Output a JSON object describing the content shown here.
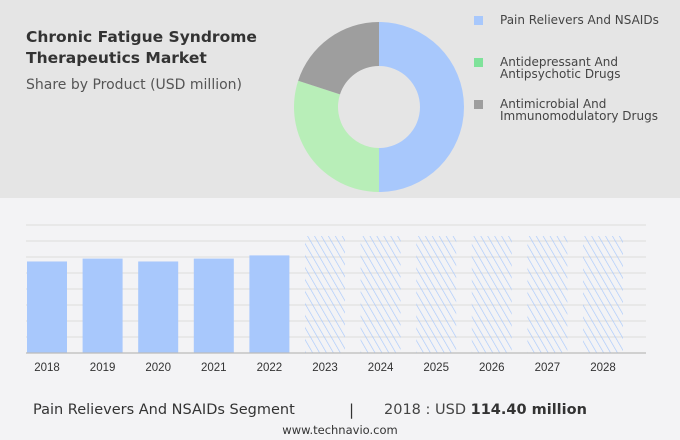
{
  "chart_data": [
    {
      "type": "pie",
      "variant": "donut",
      "title": "Chronic Fatigue Syndrome Therapeutics Market",
      "subtitle": "Share by Product (USD million)",
      "legend_position": "right",
      "slices": [
        {
          "name": "Pain Relievers And NSAIDs",
          "value": 50,
          "color": "#a8c8fc"
        },
        {
          "name": "Antidepressant And Antipsychotic Drugs",
          "value": 30,
          "color": "#b8eeb8"
        },
        {
          "name": "Antimicrobial And Immunomodulatory Drugs",
          "value": 20,
          "color": "#9e9e9e"
        }
      ],
      "legend_colors": [
        "#a8c8fc",
        "#7fe29a",
        "#9e9e9e"
      ]
    },
    {
      "type": "bar",
      "categories": [
        "2018",
        "2019",
        "2020",
        "2021",
        "2022",
        "2023",
        "2024",
        "2025",
        "2026",
        "2027",
        "2028"
      ],
      "values": [
        114.4,
        118,
        114.4,
        118,
        122,
        null,
        null,
        null,
        null,
        null,
        null
      ],
      "forecast_categories": [
        "2023",
        "2024",
        "2025",
        "2026",
        "2027",
        "2028"
      ],
      "ylim": [
        0,
        160
      ],
      "grid": true,
      "bar_color": "#a8c8fc"
    }
  ],
  "footer": {
    "segment": "Pain Relievers And NSAIDs Segment",
    "separator": "|",
    "value_prefix": "2018 : USD",
    "value": "114.40 million",
    "site": "www.technavio.com"
  }
}
